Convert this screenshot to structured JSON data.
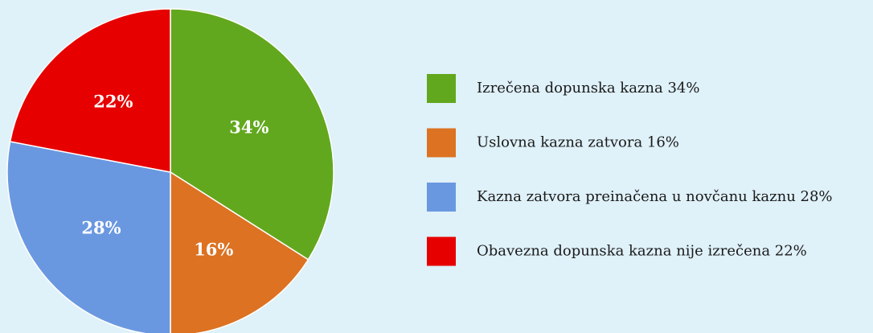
{
  "chart_data": {
    "type": "pie",
    "categories": [
      "Izrečena dopunska kazna 34%",
      "Uslovna kazna zatvora 16%",
      "Kazna zatvora preinačena u novčanu kaznu 28%",
      "Obavezna dopunska kazna nije izrečena 22%"
    ],
    "values": [
      34,
      16,
      28,
      22
    ],
    "value_labels": [
      "34%",
      "16%",
      "28%",
      "22%"
    ],
    "colors": [
      "#62a81e",
      "#dc7222",
      "#6a98e0",
      "#e60000"
    ],
    "legend": "right"
  }
}
